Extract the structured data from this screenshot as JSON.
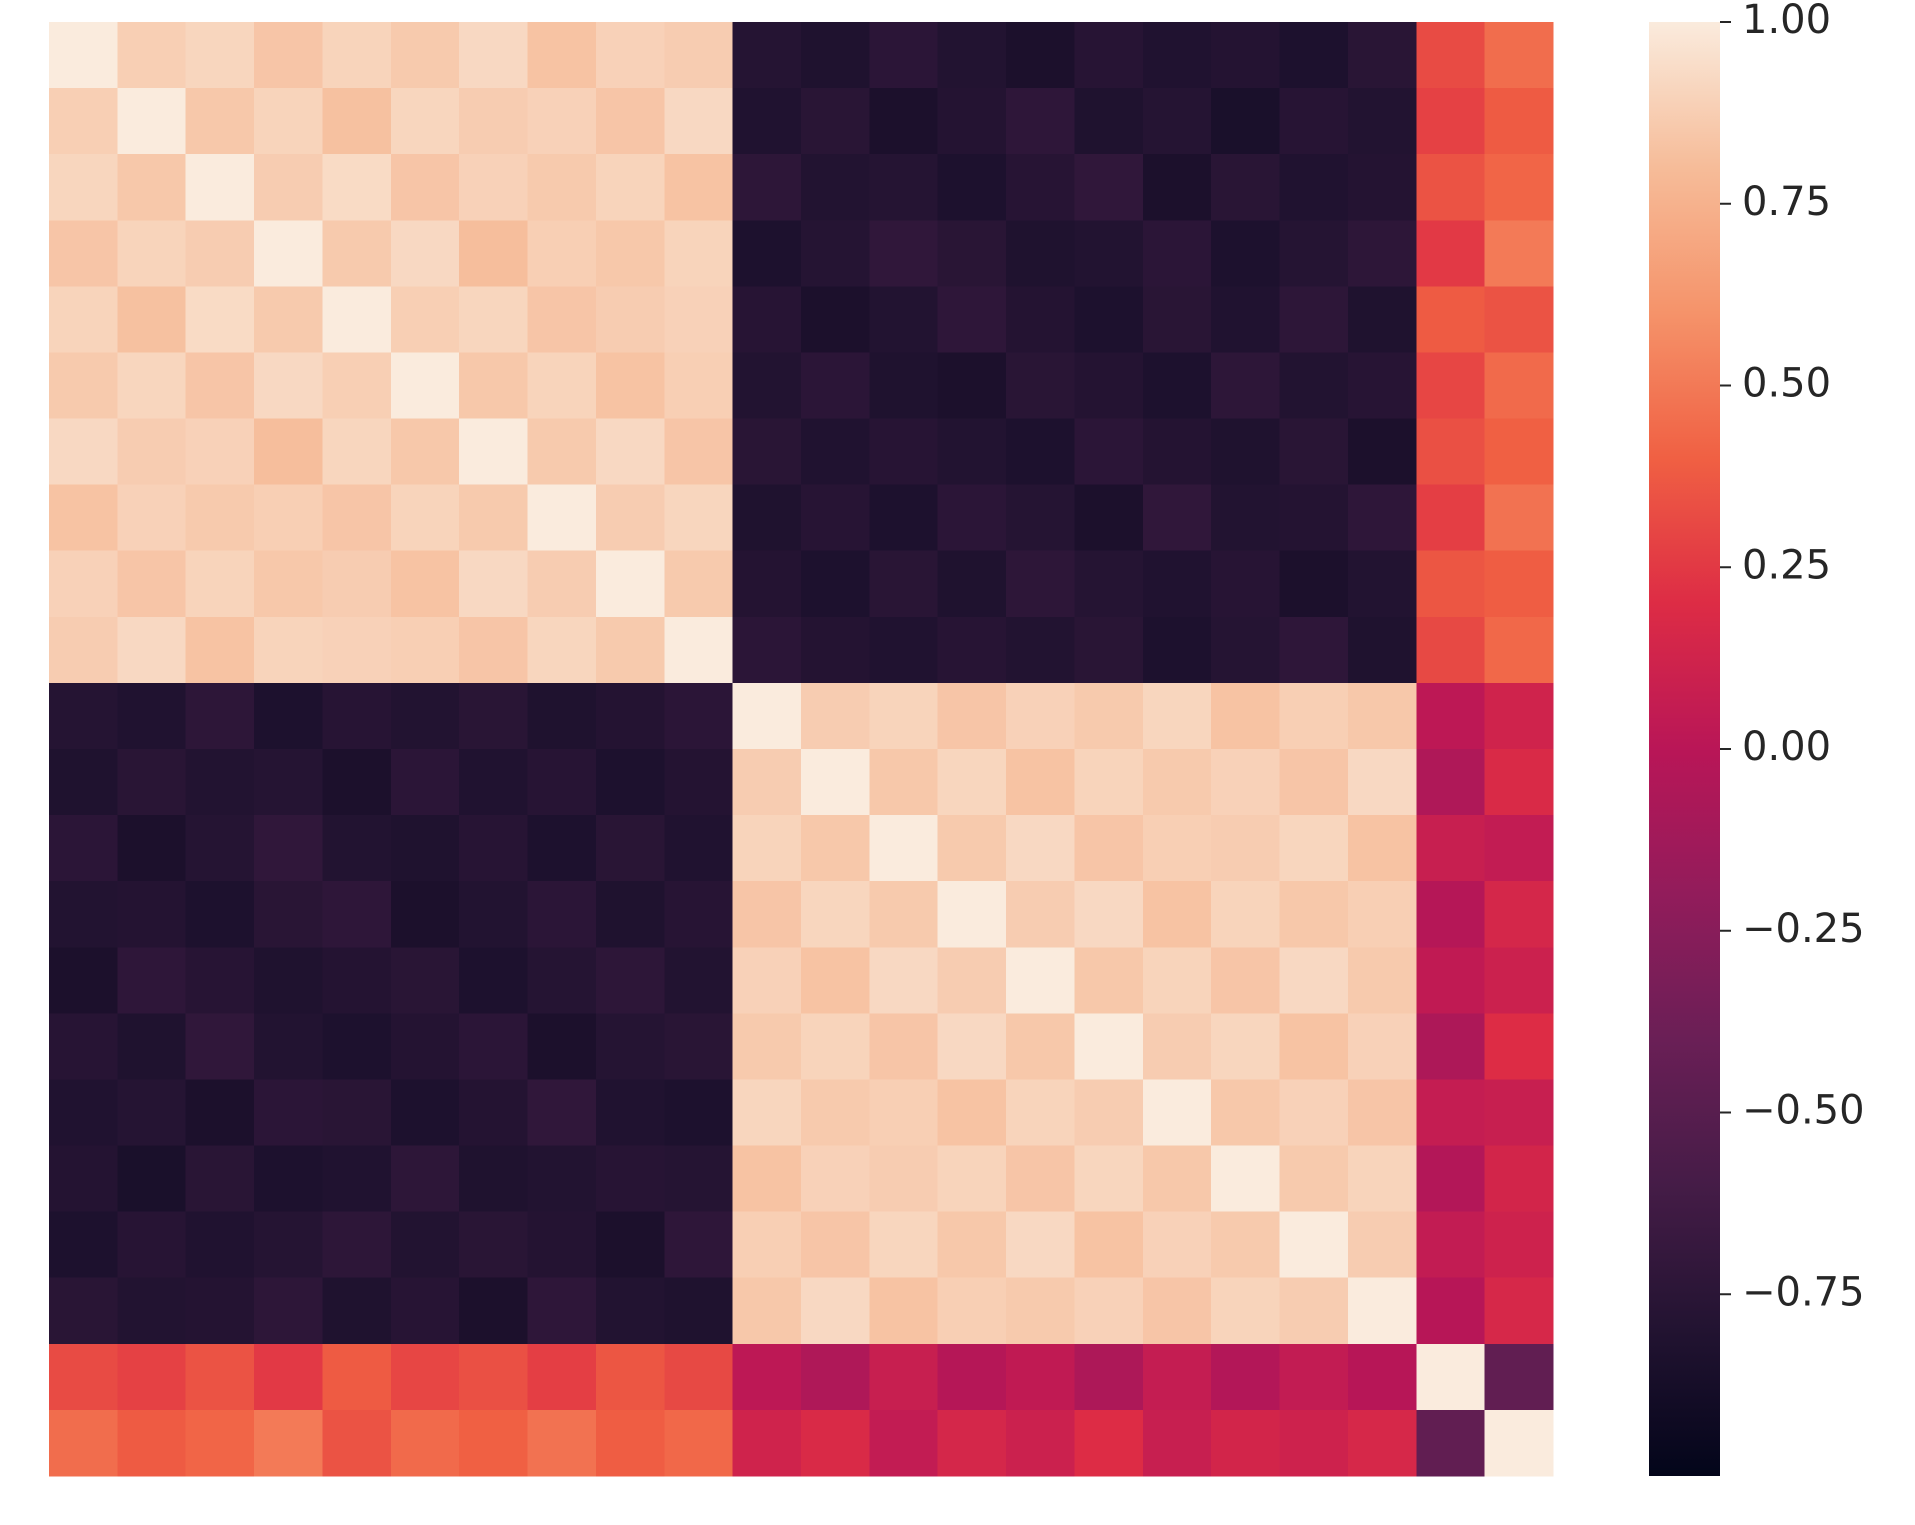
{
  "chart_data": {
    "type": "heatmap",
    "colormap": "rocket",
    "zlim": [
      -1,
      1
    ],
    "colorbar_ticks": [
      {
        "value": 1,
        "label": "1.00"
      },
      {
        "value": 0.75,
        "label": "0.75"
      },
      {
        "value": 0.5,
        "label": "0.50"
      },
      {
        "value": 0.25,
        "label": "0.25"
      },
      {
        "value": 0,
        "label": "0.00"
      },
      {
        "value": -0.25,
        "label": "−0.25"
      },
      {
        "value": -0.5,
        "label": "−0.50"
      },
      {
        "value": -0.75,
        "label": "−0.75"
      }
    ],
    "z": [
      [
        1.0,
        0.88,
        0.91,
        0.84,
        0.9,
        0.86,
        0.92,
        0.83,
        0.89,
        0.87,
        -0.78,
        -0.82,
        -0.75,
        -0.8,
        -0.84,
        -0.77,
        -0.81,
        -0.79,
        -0.83,
        -0.76,
        0.32,
        0.45
      ],
      [
        0.88,
        1.0,
        0.85,
        0.9,
        0.82,
        0.91,
        0.87,
        0.89,
        0.84,
        0.92,
        -0.81,
        -0.76,
        -0.84,
        -0.79,
        -0.73,
        -0.82,
        -0.78,
        -0.85,
        -0.77,
        -0.8,
        0.28,
        0.38
      ],
      [
        0.91,
        0.85,
        1.0,
        0.87,
        0.93,
        0.84,
        0.89,
        0.86,
        0.9,
        0.83,
        -0.74,
        -0.8,
        -0.78,
        -0.83,
        -0.77,
        -0.72,
        -0.84,
        -0.76,
        -0.81,
        -0.79,
        0.35,
        0.42
      ],
      [
        0.84,
        0.9,
        0.87,
        1.0,
        0.86,
        0.92,
        0.81,
        0.88,
        0.85,
        0.9,
        -0.83,
        -0.78,
        -0.72,
        -0.76,
        -0.82,
        -0.8,
        -0.75,
        -0.83,
        -0.78,
        -0.74,
        0.25,
        0.5
      ],
      [
        0.9,
        0.82,
        0.93,
        0.86,
        1.0,
        0.88,
        0.91,
        0.84,
        0.87,
        0.89,
        -0.77,
        -0.84,
        -0.8,
        -0.73,
        -0.79,
        -0.83,
        -0.76,
        -0.81,
        -0.74,
        -0.82,
        0.38,
        0.35
      ],
      [
        0.86,
        0.91,
        0.84,
        0.92,
        0.88,
        1.0,
        0.85,
        0.9,
        0.83,
        0.88,
        -0.8,
        -0.75,
        -0.82,
        -0.84,
        -0.76,
        -0.79,
        -0.83,
        -0.74,
        -0.8,
        -0.77,
        0.3,
        0.44
      ],
      [
        0.92,
        0.87,
        0.89,
        0.81,
        0.91,
        0.85,
        1.0,
        0.86,
        0.92,
        0.84,
        -0.76,
        -0.81,
        -0.77,
        -0.8,
        -0.83,
        -0.75,
        -0.79,
        -0.82,
        -0.76,
        -0.84,
        0.34,
        0.4
      ],
      [
        0.83,
        0.89,
        0.86,
        0.88,
        0.84,
        0.9,
        0.86,
        1.0,
        0.87,
        0.91,
        -0.82,
        -0.77,
        -0.83,
        -0.75,
        -0.78,
        -0.84,
        -0.72,
        -0.8,
        -0.79,
        -0.73,
        0.27,
        0.47
      ],
      [
        0.89,
        0.84,
        0.9,
        0.85,
        0.87,
        0.83,
        0.92,
        0.87,
        1.0,
        0.86,
        -0.79,
        -0.83,
        -0.76,
        -0.82,
        -0.74,
        -0.78,
        -0.81,
        -0.77,
        -0.84,
        -0.8,
        0.36,
        0.39
      ],
      [
        0.87,
        0.92,
        0.83,
        0.9,
        0.89,
        0.88,
        0.84,
        0.91,
        0.86,
        1.0,
        -0.75,
        -0.79,
        -0.81,
        -0.77,
        -0.8,
        -0.76,
        -0.83,
        -0.78,
        -0.73,
        -0.82,
        0.31,
        0.43
      ],
      [
        -0.78,
        -0.81,
        -0.74,
        -0.83,
        -0.77,
        -0.8,
        -0.76,
        -0.82,
        -0.79,
        -0.75,
        1.0,
        0.87,
        0.9,
        0.84,
        0.89,
        0.86,
        0.91,
        0.83,
        0.88,
        0.85,
        0.02,
        0.12
      ],
      [
        -0.82,
        -0.76,
        -0.8,
        -0.78,
        -0.84,
        -0.75,
        -0.81,
        -0.77,
        -0.83,
        -0.79,
        0.87,
        1.0,
        0.85,
        0.91,
        0.83,
        0.9,
        0.86,
        0.89,
        0.84,
        0.92,
        -0.05,
        0.18
      ],
      [
        -0.75,
        -0.84,
        -0.78,
        -0.72,
        -0.8,
        -0.82,
        -0.77,
        -0.83,
        -0.76,
        -0.81,
        0.9,
        0.85,
        1.0,
        0.86,
        0.92,
        0.84,
        0.88,
        0.87,
        0.91,
        0.83,
        0.08,
        0.05
      ],
      [
        -0.8,
        -0.79,
        -0.83,
        -0.76,
        -0.73,
        -0.84,
        -0.8,
        -0.75,
        -0.82,
        -0.77,
        0.84,
        0.91,
        0.86,
        1.0,
        0.87,
        0.92,
        0.83,
        0.9,
        0.85,
        0.88,
        -0.02,
        0.15
      ],
      [
        -0.84,
        -0.73,
        -0.77,
        -0.82,
        -0.79,
        -0.76,
        -0.83,
        -0.78,
        -0.74,
        -0.8,
        0.89,
        0.83,
        0.92,
        0.87,
        1.0,
        0.85,
        0.9,
        0.84,
        0.92,
        0.86,
        0.04,
        0.1
      ],
      [
        -0.77,
        -0.82,
        -0.72,
        -0.8,
        -0.83,
        -0.79,
        -0.75,
        -0.84,
        -0.78,
        -0.76,
        0.86,
        0.9,
        0.84,
        0.92,
        0.85,
        1.0,
        0.87,
        0.91,
        0.83,
        0.89,
        -0.06,
        0.2
      ],
      [
        -0.81,
        -0.78,
        -0.84,
        -0.75,
        -0.76,
        -0.83,
        -0.79,
        -0.72,
        -0.81,
        -0.83,
        0.91,
        0.86,
        0.88,
        0.83,
        0.9,
        0.87,
        1.0,
        0.85,
        0.89,
        0.84,
        0.06,
        0.08
      ],
      [
        -0.79,
        -0.85,
        -0.76,
        -0.83,
        -0.81,
        -0.74,
        -0.82,
        -0.8,
        -0.77,
        -0.78,
        0.83,
        0.89,
        0.87,
        0.9,
        0.84,
        0.91,
        0.85,
        1.0,
        0.86,
        0.9,
        -0.03,
        0.14
      ],
      [
        -0.83,
        -0.77,
        -0.81,
        -0.78,
        -0.74,
        -0.8,
        -0.76,
        -0.79,
        -0.84,
        -0.73,
        0.88,
        0.84,
        0.91,
        0.85,
        0.92,
        0.83,
        0.89,
        0.86,
        1.0,
        0.87,
        0.05,
        0.11
      ],
      [
        -0.76,
        -0.8,
        -0.79,
        -0.74,
        -0.82,
        -0.77,
        -0.84,
        -0.73,
        -0.8,
        -0.82,
        0.85,
        0.92,
        0.83,
        0.88,
        0.86,
        0.89,
        0.84,
        0.9,
        0.87,
        1.0,
        -0.01,
        0.16
      ],
      [
        0.32,
        0.28,
        0.35,
        0.25,
        0.38,
        0.3,
        0.34,
        0.27,
        0.36,
        0.31,
        0.02,
        -0.05,
        0.08,
        -0.02,
        0.04,
        -0.06,
        0.06,
        -0.03,
        0.05,
        -0.01,
        1.0,
        -0.45
      ],
      [
        0.45,
        0.38,
        0.42,
        0.5,
        0.35,
        0.44,
        0.4,
        0.47,
        0.39,
        0.43,
        0.12,
        0.18,
        0.05,
        0.15,
        0.1,
        0.2,
        0.08,
        0.14,
        0.11,
        0.16,
        -0.45,
        1.0
      ]
    ]
  }
}
